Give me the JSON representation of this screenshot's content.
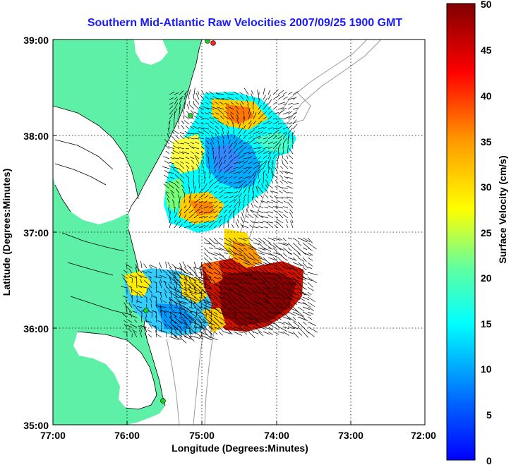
{
  "title": "Southern Mid-Atlantic Raw Velocities 2007/09/25 1900 GMT",
  "x_axis": {
    "label": "Longitude (Degrees:Minutes)",
    "ticks": [
      "77:00",
      "76:00",
      "75:00",
      "74:00",
      "73:00",
      "72:00"
    ]
  },
  "y_axis": {
    "label": "Latitude (Degrees:Minutes)",
    "ticks": [
      "39:00",
      "38:00",
      "37:00",
      "36:00",
      "35:00"
    ]
  },
  "colorbar": {
    "label": "Surface Velocity (cm/s)",
    "min": 0,
    "max": 50,
    "ticks": [
      "50",
      "45",
      "40",
      "35",
      "30",
      "25",
      "20",
      "15",
      "10",
      "5",
      "0"
    ]
  },
  "colors": {
    "land": "#5ff0a8",
    "grid": "#000000",
    "bathymetry": "#999999",
    "station": "#22cc22",
    "station_alt": "#ff2222",
    "arrow": "#000000"
  },
  "icons": [
    "hf-radar-station-icon",
    "velocity-arrow-icon"
  ]
}
